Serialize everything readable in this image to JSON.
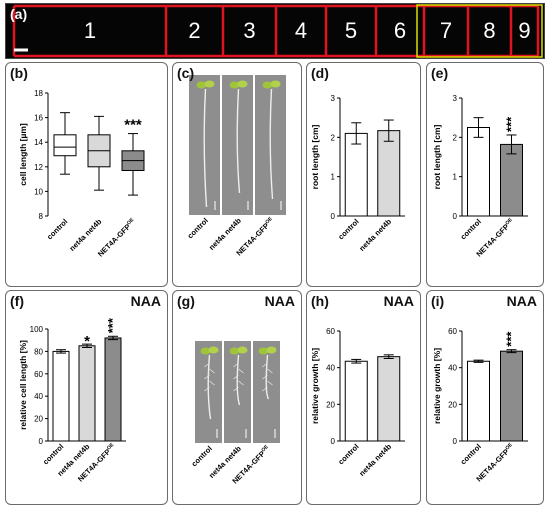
{
  "figure": {
    "panel_letters": [
      "(a)",
      "(b)",
      "(c)",
      "(d)",
      "(e)",
      "(f)",
      "(g)",
      "(h)",
      "(i)"
    ],
    "treatment_label": "NAA"
  },
  "strip": {
    "cell_numbers": [
      "1",
      "2",
      "3",
      "4",
      "5",
      "6",
      "7",
      "8",
      "9"
    ],
    "membrane_color": "#e0141e",
    "highlight_color": "#d8e000"
  },
  "photos": {
    "c_labels": [
      "control",
      "net4a net4b",
      "NET4A-GFP"
    ],
    "g_labels": [
      "control",
      "net4a net4b",
      "NET4A-GFP"
    ],
    "superscript": "OE"
  },
  "chart_data": [
    {
      "panel": "(b)",
      "type": "box",
      "ylabel": "cell length [µm]",
      "ylim": [
        8,
        18
      ],
      "yticks": [
        8,
        10,
        12,
        14,
        16,
        18
      ],
      "categories": [
        "control",
        "net4a net4b",
        "NET4A-GFP"
      ],
      "superscript": "OE",
      "boxes": [
        {
          "min": 11.4,
          "q1": 12.9,
          "median": 13.6,
          "q3": 14.6,
          "max": 16.4,
          "fill": "#ffffff"
        },
        {
          "min": 10.1,
          "q1": 12.0,
          "median": 13.3,
          "q3": 14.6,
          "max": 16.1,
          "fill": "#d9d9d9"
        },
        {
          "min": 9.7,
          "q1": 11.7,
          "median": 12.5,
          "q3": 13.3,
          "max": 14.7,
          "fill": "#8c8c8c"
        }
      ],
      "significance": [
        "",
        "",
        "***"
      ]
    },
    {
      "panel": "(d)",
      "type": "bar",
      "ylabel": "root length [cm]",
      "ylim": [
        0,
        3
      ],
      "yticks": [
        0,
        1,
        2,
        3
      ],
      "categories": [
        "control",
        "net4a net4b"
      ],
      "superscript": "",
      "values": [
        2.1,
        2.17
      ],
      "errors": [
        0.27,
        0.27
      ],
      "fills": [
        "#ffffff",
        "#d9d9d9"
      ],
      "significance": [
        "",
        ""
      ]
    },
    {
      "panel": "(e)",
      "type": "bar",
      "ylabel": "root length [cm]",
      "ylim": [
        0,
        3
      ],
      "yticks": [
        0,
        1,
        2,
        3
      ],
      "categories": [
        "control",
        "NET4A-GFP"
      ],
      "superscript": "OE",
      "values": [
        2.25,
        1.82
      ],
      "errors": [
        0.25,
        0.24
      ],
      "fills": [
        "#ffffff",
        "#8c8c8c"
      ],
      "significance": [
        "",
        "***"
      ]
    },
    {
      "panel": "(f)",
      "type": "bar",
      "ylabel": "relative cell length [%]",
      "ylim": [
        0,
        100
      ],
      "yticks": [
        0,
        20,
        40,
        60,
        80,
        100
      ],
      "categories": [
        "control",
        "net4a net4b",
        "NET4A-GFP"
      ],
      "superscript": "OE",
      "values": [
        80,
        85,
        92
      ],
      "errors": [
        1.5,
        1.5,
        1.5
      ],
      "fills": [
        "#ffffff",
        "#d9d9d9",
        "#8c8c8c"
      ],
      "significance": [
        "",
        "*",
        "***"
      ]
    },
    {
      "panel": "(h)",
      "type": "bar",
      "ylabel": "relative growth [%]",
      "ylim": [
        0,
        60
      ],
      "yticks": [
        0,
        20,
        40,
        60
      ],
      "categories": [
        "control",
        "net4a net4b"
      ],
      "superscript": "",
      "values": [
        43.5,
        46
      ],
      "errors": [
        1,
        1
      ],
      "fills": [
        "#ffffff",
        "#d9d9d9"
      ],
      "significance": [
        "",
        ""
      ]
    },
    {
      "panel": "(i)",
      "type": "bar",
      "ylabel": "relative growth [%]",
      "ylim": [
        0,
        60
      ],
      "yticks": [
        0,
        20,
        40,
        60
      ],
      "categories": [
        "control",
        "NET4A-GFP"
      ],
      "superscript": "OE",
      "values": [
        43.5,
        49
      ],
      "errors": [
        0.6,
        0.8
      ],
      "fills": [
        "#ffffff",
        "#8c8c8c"
      ],
      "significance": [
        "",
        "***"
      ]
    }
  ]
}
